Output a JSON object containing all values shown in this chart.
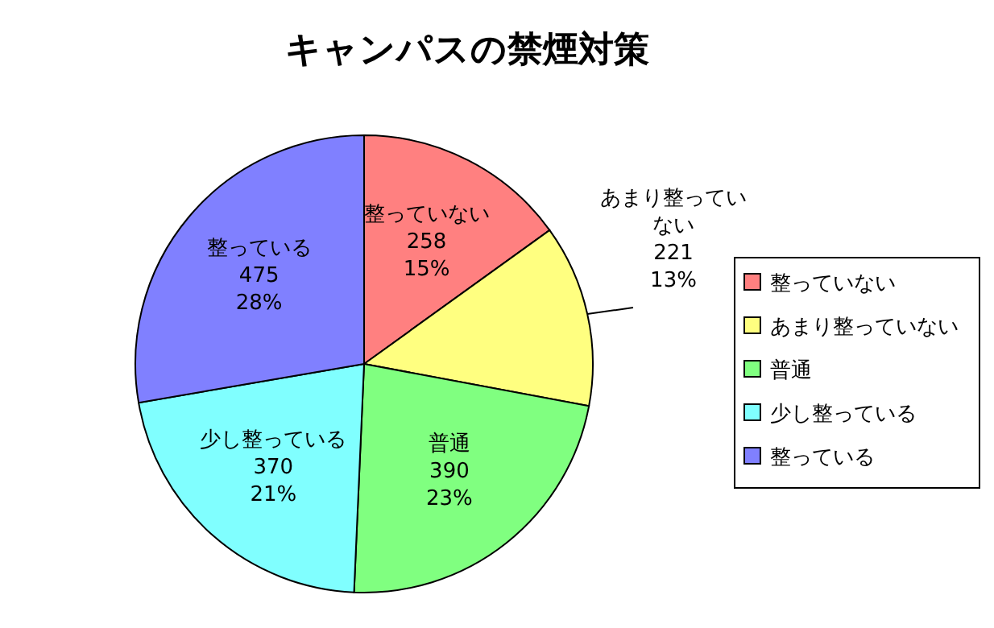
{
  "chart_data": {
    "type": "pie",
    "title": "キャンパスの禁煙対策",
    "categories": [
      "整っていない",
      "あまり整っていない",
      "普通",
      "少し整っている",
      "整っている"
    ],
    "values": [
      258,
      221,
      390,
      370,
      475
    ],
    "value_labels": [
      "258\n15%",
      "221\n13%",
      "390\n23%",
      "370\n21%",
      "475\n28%"
    ],
    "colors": [
      "#ff8080",
      "#ffff80",
      "#80ff80",
      "#80ffff",
      "#8080ff"
    ],
    "legend": "right"
  }
}
